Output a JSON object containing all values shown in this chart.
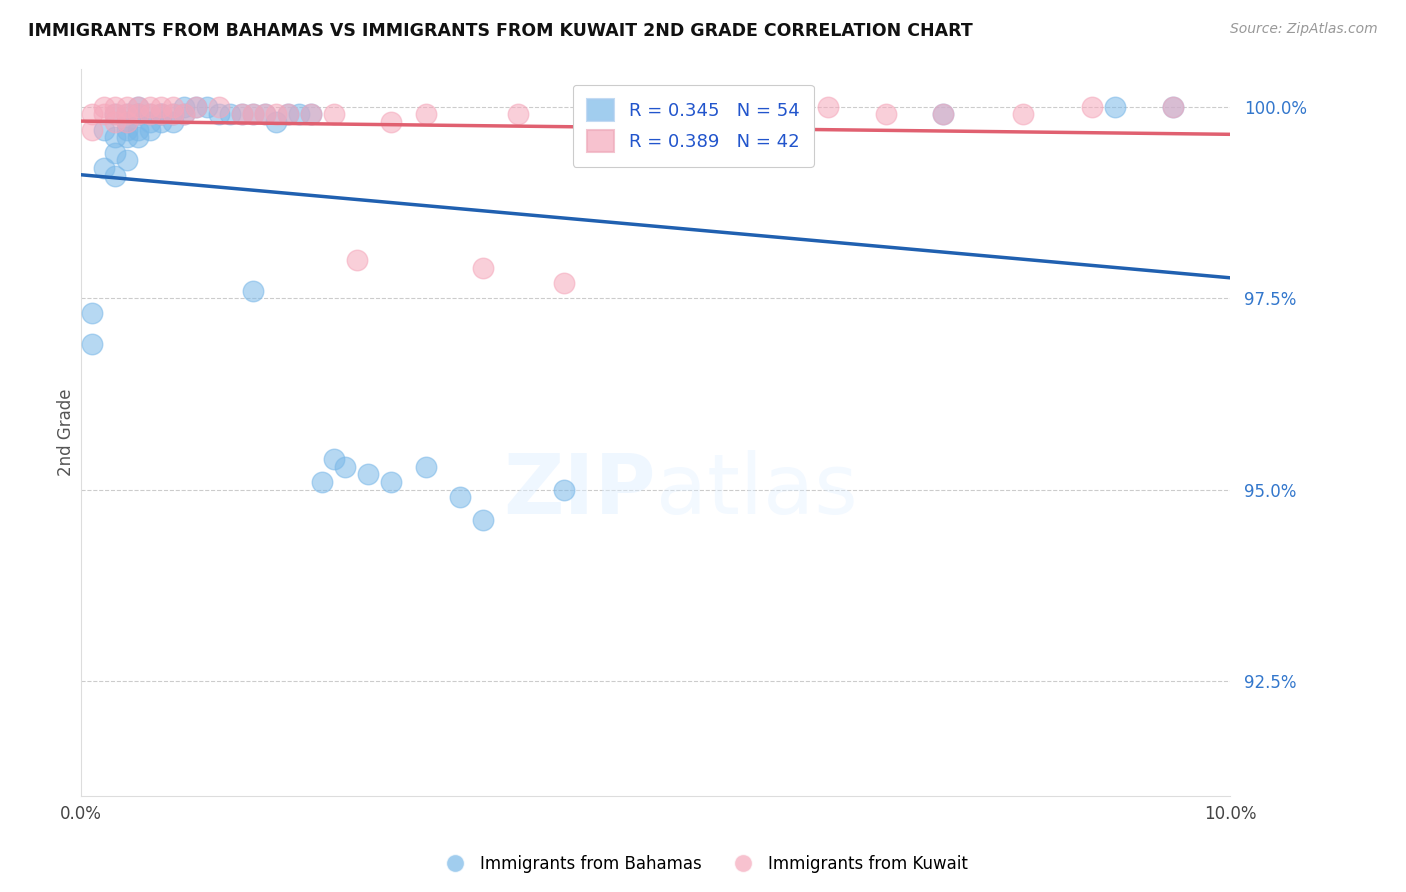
{
  "title": "IMMIGRANTS FROM BAHAMAS VS IMMIGRANTS FROM KUWAIT 2ND GRADE CORRELATION CHART",
  "source": "Source: ZipAtlas.com",
  "ylabel": "2nd Grade",
  "ylabel_right_ticks": [
    "100.0%",
    "97.5%",
    "95.0%",
    "92.5%"
  ],
  "ylabel_right_values": [
    1.0,
    0.975,
    0.95,
    0.925
  ],
  "xmin": 0.0,
  "xmax": 0.1,
  "ymin": 0.91,
  "ymax": 1.005,
  "legend_blue_R": "0.345",
  "legend_blue_N": "54",
  "legend_pink_R": "0.389",
  "legend_pink_N": "42",
  "blue_color": "#7ab8e8",
  "pink_color": "#f5a8bb",
  "blue_line_color": "#2060b0",
  "pink_line_color": "#e06070",
  "background_color": "#ffffff",
  "blue_x": [
    0.001,
    0.001,
    0.002,
    0.002,
    0.003,
    0.003,
    0.003,
    0.003,
    0.004,
    0.004,
    0.004,
    0.004,
    0.004,
    0.005,
    0.005,
    0.005,
    0.005,
    0.005,
    0.006,
    0.006,
    0.006,
    0.007,
    0.007,
    0.007,
    0.008,
    0.008,
    0.009,
    0.009,
    0.01,
    0.011,
    0.012,
    0.013,
    0.014,
    0.015,
    0.015,
    0.016,
    0.017,
    0.018,
    0.019,
    0.02,
    0.021,
    0.022,
    0.023,
    0.025,
    0.027,
    0.03,
    0.033,
    0.035,
    0.042,
    0.05,
    0.057,
    0.075,
    0.09,
    0.095
  ],
  "blue_y": [
    0.973,
    0.969,
    0.997,
    0.992,
    0.999,
    0.996,
    0.994,
    0.991,
    0.999,
    0.998,
    0.997,
    0.996,
    0.993,
    1.0,
    0.999,
    0.999,
    0.997,
    0.996,
    0.999,
    0.998,
    0.997,
    0.999,
    0.999,
    0.998,
    0.999,
    0.998,
    1.0,
    0.999,
    1.0,
    1.0,
    0.999,
    0.999,
    0.999,
    0.999,
    0.976,
    0.999,
    0.998,
    0.999,
    0.999,
    0.999,
    0.951,
    0.954,
    0.953,
    0.952,
    0.951,
    0.953,
    0.949,
    0.946,
    0.95,
    0.999,
    1.0,
    0.999,
    1.0,
    1.0
  ],
  "pink_x": [
    0.001,
    0.001,
    0.002,
    0.002,
    0.003,
    0.003,
    0.003,
    0.004,
    0.004,
    0.004,
    0.005,
    0.005,
    0.006,
    0.006,
    0.007,
    0.007,
    0.008,
    0.008,
    0.009,
    0.01,
    0.012,
    0.014,
    0.015,
    0.016,
    0.017,
    0.018,
    0.02,
    0.022,
    0.024,
    0.027,
    0.03,
    0.035,
    0.038,
    0.042,
    0.05,
    0.06,
    0.065,
    0.07,
    0.075,
    0.082,
    0.088,
    0.095
  ],
  "pink_y": [
    0.999,
    0.997,
    1.0,
    0.999,
    1.0,
    0.999,
    0.998,
    1.0,
    0.999,
    0.998,
    1.0,
    0.999,
    1.0,
    0.999,
    1.0,
    0.999,
    1.0,
    0.999,
    0.999,
    1.0,
    1.0,
    0.999,
    0.999,
    0.999,
    0.999,
    0.999,
    0.999,
    0.999,
    0.98,
    0.998,
    0.999,
    0.979,
    0.999,
    0.977,
    0.999,
    0.999,
    1.0,
    0.999,
    0.999,
    0.999,
    1.0,
    1.0
  ]
}
